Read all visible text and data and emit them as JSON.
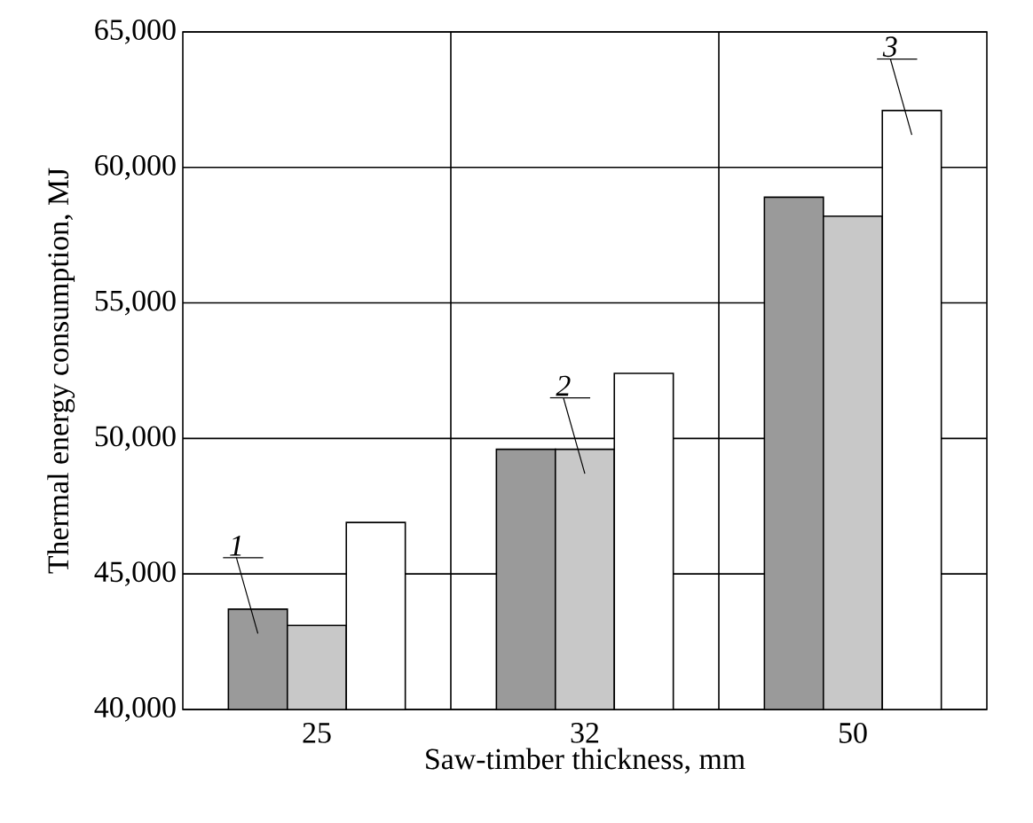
{
  "chart_data": {
    "type": "bar",
    "xlabel": "Saw-timber thickness, mm",
    "ylabel": "Thermal energy consumption, MJ",
    "categories": [
      "25",
      "32",
      "50"
    ],
    "series": [
      {
        "color": "#9a9a9a",
        "values": [
          43700,
          49600,
          58900
        ]
      },
      {
        "color": "#c8c8c8",
        "values": [
          43100,
          49600,
          58200
        ]
      },
      {
        "color": "#ffffff",
        "values": [
          46900,
          52400,
          62100
        ]
      }
    ],
    "ylim": [
      40000,
      65000
    ],
    "yticks": [
      {
        "value": 40000,
        "label": "40,000"
      },
      {
        "value": 45000,
        "label": "45,000"
      },
      {
        "value": 50000,
        "label": "50,000"
      },
      {
        "value": 55000,
        "label": "55,000"
      },
      {
        "value": 60000,
        "label": "60,000"
      },
      {
        "value": 65000,
        "label": "65,000"
      }
    ],
    "grid": true,
    "annotations": [
      "1",
      "2",
      "3"
    ]
  }
}
